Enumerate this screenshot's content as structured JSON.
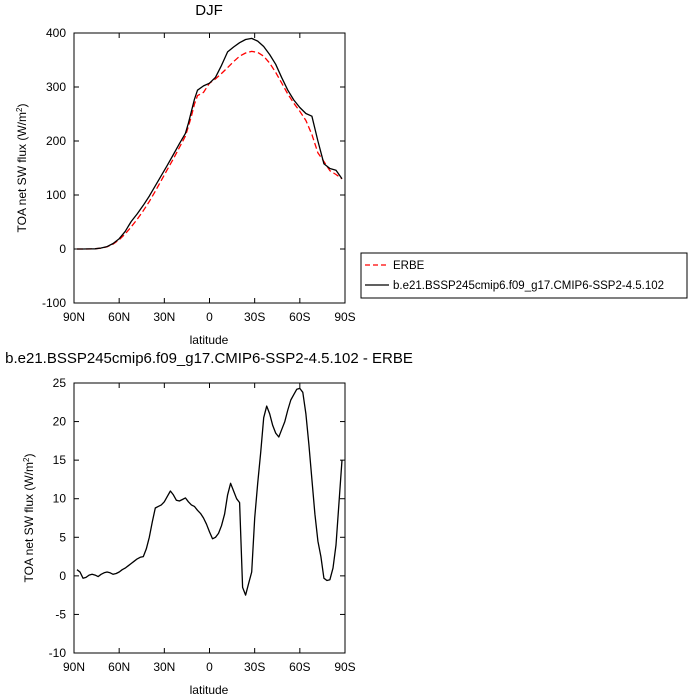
{
  "chart_data": [
    {
      "type": "line",
      "title": "DJF",
      "xlabel": "latitude",
      "ylabel_main": "TOA net SW flux (W/m",
      "ylabel_sup": "2",
      "ylabel_end": ")",
      "xlim": [
        90,
        -90
      ],
      "ylim": [
        -100,
        400
      ],
      "xticks": [
        90,
        60,
        30,
        0,
        -30,
        -60,
        -90
      ],
      "xtick_labels": [
        "90N",
        "60N",
        "30N",
        "0",
        "30S",
        "60S",
        "90S"
      ],
      "yticks": [
        -100,
        0,
        100,
        200,
        300,
        400
      ],
      "ytick_labels": [
        "-100",
        "0",
        "100",
        "200",
        "300",
        "400"
      ],
      "legend_position": "right",
      "series": [
        {
          "name": "ERBE",
          "style": "dashed",
          "color": "#ff0000",
          "x": [
            88,
            84,
            80,
            76,
            72,
            68,
            64,
            60,
            56,
            52,
            48,
            44,
            40,
            36,
            32,
            28,
            24,
            20,
            16,
            14,
            12,
            10,
            8,
            4,
            0,
            -4,
            -8,
            -12,
            -16,
            -20,
            -24,
            -28,
            -32,
            -36,
            -40,
            -44,
            -48,
            -52,
            -56,
            -60,
            -64,
            -68,
            -72,
            -76,
            -80,
            -84,
            -88
          ],
          "y": [
            0,
            0,
            0,
            0.5,
            1.5,
            4,
            9,
            17,
            28,
            41,
            55,
            71,
            88,
            107,
            127,
            147,
            167,
            188,
            209,
            227,
            246,
            268,
            284,
            290,
            307,
            315,
            325,
            336,
            347,
            357,
            363,
            366,
            364,
            357,
            344,
            327,
            307,
            287,
            270,
            255,
            238,
            212,
            178,
            162,
            145,
            138,
            130
          ]
        },
        {
          "name": "b.e21.BSSP245cmip6.f09_g17.CMIP6-SSP2-4.5.102",
          "style": "solid",
          "color": "#000000",
          "x": [
            88,
            84,
            80,
            76,
            72,
            68,
            64,
            60,
            56,
            52,
            48,
            44,
            40,
            36,
            32,
            28,
            24,
            20,
            16,
            14,
            12,
            10,
            8,
            4,
            0,
            -4,
            -8,
            -12,
            -16,
            -20,
            -24,
            -28,
            -32,
            -36,
            -40,
            -44,
            -48,
            -52,
            -56,
            -60,
            -64,
            -68,
            -72,
            -76,
            -80,
            -84,
            -88
          ],
          "y": [
            0,
            0,
            0.1,
            0.4,
            1.8,
            4.5,
            10.2,
            19,
            32.5,
            51,
            65,
            81,
            98,
            117,
            136,
            155,
            175,
            195,
            214,
            233,
            255,
            277,
            294,
            302,
            307,
            318,
            340,
            365,
            374,
            382,
            388,
            390,
            385,
            375,
            360,
            342,
            317,
            294,
            276,
            262,
            251,
            246,
            200,
            158,
            149,
            146,
            130
          ]
        }
      ]
    },
    {
      "type": "line",
      "title": "b.e21.BSSP245cmip6.f09_g17.CMIP6-SSP2-4.5.102 - ERBE",
      "xlabel": "latitude",
      "ylabel_main": "TOA net SW flux (W/m",
      "ylabel_sup": "2",
      "ylabel_end": ")",
      "xlim": [
        90,
        -90
      ],
      "ylim": [
        -10,
        25
      ],
      "xticks": [
        90,
        60,
        30,
        0,
        -30,
        -60,
        -90
      ],
      "xtick_labels": [
        "90N",
        "60N",
        "30N",
        "0",
        "30S",
        "60S",
        "90S"
      ],
      "yticks": [
        -10,
        -5,
        0,
        5,
        10,
        15,
        20,
        25
      ],
      "ytick_labels": [
        "-10",
        "-5",
        "0",
        "5",
        "10",
        "15",
        "20",
        "25"
      ],
      "series": [
        {
          "name": "",
          "style": "solid",
          "color": "#000000",
          "x": [
            88,
            86,
            84,
            82,
            80,
            78,
            76,
            74,
            72,
            70,
            68,
            66,
            64,
            62,
            60,
            58,
            56,
            54,
            52,
            50,
            48,
            46,
            44,
            42,
            40,
            38,
            36,
            34,
            32,
            30,
            28,
            26,
            24,
            22,
            20,
            18,
            16,
            14,
            12,
            10,
            8,
            6,
            4,
            2,
            0,
            -2,
            -4,
            -6,
            -8,
            -10,
            -12,
            -14,
            -16,
            -18,
            -20,
            -22,
            -24,
            -26,
            -28,
            -30,
            -32,
            -34,
            -36,
            -38,
            -40,
            -42,
            -44,
            -46,
            -48,
            -50,
            -52,
            -54,
            -56,
            -58,
            -60,
            -62,
            -64,
            -66,
            -68,
            -70,
            -72,
            -74,
            -76,
            -78,
            -80,
            -82,
            -84,
            -86,
            -88
          ],
          "y": [
            0.8,
            0.5,
            -0.3,
            -0.2,
            0.1,
            0.2,
            0.1,
            -0.1,
            0.2,
            0.4,
            0.5,
            0.4,
            0.2,
            0.3,
            0.5,
            0.8,
            1.0,
            1.3,
            1.6,
            1.9,
            2.2,
            2.4,
            2.5,
            3.5,
            5.0,
            7.0,
            8.8,
            9.0,
            9.2,
            9.6,
            10.3,
            11.0,
            10.5,
            9.8,
            9.7,
            9.9,
            10.1,
            9.6,
            9.2,
            9.0,
            8.5,
            8.1,
            7.5,
            6.7,
            5.7,
            4.8,
            5.0,
            5.5,
            6.5,
            8.0,
            10.5,
            12.0,
            11.0,
            10.0,
            9.5,
            -1.5,
            -2.5,
            -1.0,
            0.5,
            7.5,
            12.0,
            16.0,
            20.5,
            22.0,
            21.0,
            19.5,
            18.5,
            18.0,
            19.0,
            20.0,
            21.5,
            22.8,
            23.5,
            24.2,
            24.3,
            23.8,
            21.0,
            17.0,
            12.5,
            8.0,
            4.5,
            2.5,
            -0.3,
            -0.6,
            -0.5,
            1.0,
            4.0,
            9.5,
            15.0
          ]
        }
      ]
    }
  ]
}
